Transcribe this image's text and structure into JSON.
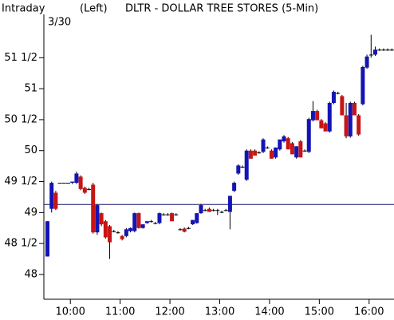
{
  "chart_data": {
    "type": "candlestick",
    "title": "DLTR - DOLLAR TREE STORES (5-Min)",
    "period": "Intraday",
    "axis_side": "(Left)",
    "date": "3/30",
    "up_color": "#1414b4",
    "down_color": "#c81414",
    "reference_line": 49.13,
    "reference_color": "#14146e",
    "xlim": [
      570,
      990
    ],
    "xticks": [
      {
        "value": 600,
        "label": "10:00"
      },
      {
        "value": 660,
        "label": "11:00"
      },
      {
        "value": 720,
        "label": "12:00"
      },
      {
        "value": 780,
        "label": "13:00"
      },
      {
        "value": 840,
        "label": "14:00"
      },
      {
        "value": 900,
        "label": "15:00"
      },
      {
        "value": 960,
        "label": "16:00"
      }
    ],
    "ylim": [
      47.6,
      52.2
    ],
    "yticks": [
      {
        "value": 48,
        "label": "48"
      },
      {
        "value": 48.5,
        "label": "48 1/2"
      },
      {
        "value": 49,
        "label": "49"
      },
      {
        "value": 49.5,
        "label": "49 1/2"
      },
      {
        "value": 50,
        "label": "50"
      },
      {
        "value": 50.5,
        "label": "50 1/2"
      },
      {
        "value": 51,
        "label": "51"
      },
      {
        "value": 51.5,
        "label": "51 1/2"
      }
    ],
    "x": [
      570,
      575,
      580,
      585,
      590,
      595,
      600,
      605,
      610,
      615,
      620,
      625,
      630,
      635,
      640,
      645,
      650,
      655,
      660,
      665,
      670,
      675,
      680,
      685,
      690,
      695,
      700,
      705,
      710,
      715,
      720,
      725,
      730,
      735,
      740,
      745,
      750,
      755,
      760,
      765,
      770,
      775,
      780,
      785,
      790,
      795,
      800,
      805,
      810,
      815,
      820,
      825,
      830,
      835,
      840,
      845,
      850,
      855,
      860,
      865,
      870,
      875,
      880,
      885,
      890,
      895,
      900,
      905,
      910,
      915,
      920,
      925,
      930,
      935,
      940,
      945,
      950,
      955,
      960,
      965,
      970,
      975,
      980,
      985
    ],
    "open": [
      48.29,
      49.06,
      49.32,
      49.48,
      49.48,
      49.48,
      49.48,
      49.48,
      49.58,
      49.4,
      49.38,
      49.45,
      48.68,
      48.99,
      48.86,
      48.78,
      48.7,
      48.68,
      48.62,
      48.62,
      48.7,
      48.7,
      48.99,
      48.75,
      48.83,
      48.86,
      48.83,
      48.83,
      48.97,
      48.97,
      48.99,
      48.97,
      48.73,
      48.74,
      48.75,
      48.81,
      48.83,
      48.99,
      49.04,
      49.06,
      49.04,
      49.04,
      49.01,
      49.04,
      49.01,
      49.35,
      49.63,
      49.74,
      49.53,
      50.0,
      50.0,
      49.97,
      49.98,
      50.05,
      50.0,
      49.89,
      50.02,
      50.15,
      50.2,
      50.12,
      49.89,
      50.15,
      50.0,
      49.98,
      50.49,
      50.64,
      50.49,
      50.44,
      50.31,
      50.77,
      50.93,
      50.88,
      50.57,
      50.23,
      50.77,
      50.57,
      50.75,
      51.34,
      51.55,
      51.55,
      51.63,
      51.63,
      51.63,
      51.63
    ],
    "high": [
      48.86,
      49.5,
      49.35,
      49.48,
      49.48,
      49.48,
      49.5,
      49.66,
      49.6,
      49.42,
      49.4,
      49.48,
      49.14,
      49.0,
      48.88,
      48.8,
      48.72,
      48.7,
      48.64,
      48.75,
      48.76,
      49.0,
      49.0,
      48.81,
      48.86,
      48.88,
      48.85,
      49.0,
      48.99,
      48.99,
      49.0,
      48.99,
      48.75,
      48.76,
      48.77,
      48.88,
      48.99,
      49.14,
      49.06,
      49.08,
      49.06,
      49.06,
      49.03,
      49.06,
      49.27,
      49.5,
      49.78,
      49.76,
      50.02,
      50.02,
      50.02,
      49.99,
      50.2,
      50.07,
      50.02,
      50.05,
      50.18,
      50.25,
      50.22,
      50.14,
      50.07,
      50.17,
      50.02,
      50.53,
      50.8,
      50.66,
      50.51,
      50.46,
      50.79,
      50.97,
      50.95,
      50.9,
      50.77,
      50.79,
      50.79,
      50.59,
      51.37,
      51.55,
      51.87,
      51.68,
      51.65,
      51.65,
      51.65,
      51.65
    ],
    "low": [
      48.29,
      49.0,
      49.04,
      49.48,
      49.48,
      49.48,
      49.46,
      49.46,
      49.36,
      49.3,
      49.36,
      48.66,
      48.64,
      48.78,
      48.58,
      48.25,
      48.68,
      48.66,
      48.55,
      48.6,
      48.68,
      48.68,
      48.74,
      48.74,
      48.82,
      48.84,
      48.81,
      48.81,
      48.95,
      48.95,
      48.86,
      48.95,
      48.71,
      48.68,
      48.73,
      48.8,
      48.82,
      48.98,
      49.02,
      49.01,
      49.02,
      48.96,
      48.99,
      49.02,
      48.73,
      49.33,
      49.61,
      49.72,
      49.51,
      49.87,
      49.92,
      49.95,
      49.96,
      50.03,
      49.87,
      49.87,
      50.0,
      50.13,
      50.02,
      49.94,
      49.87,
      49.89,
      49.98,
      49.96,
      50.47,
      50.49,
      50.36,
      50.31,
      50.29,
      50.75,
      50.91,
      50.57,
      50.2,
      50.21,
      50.57,
      50.24,
      50.73,
      51.32,
      51.5,
      51.53,
      51.61,
      51.61,
      51.61,
      51.61
    ],
    "close": [
      48.86,
      49.48,
      49.06,
      49.48,
      49.48,
      49.48,
      49.5,
      49.63,
      49.38,
      49.32,
      49.38,
      48.68,
      49.12,
      48.81,
      48.6,
      48.52,
      48.7,
      48.68,
      48.57,
      48.73,
      48.75,
      48.99,
      48.75,
      48.81,
      48.86,
      48.86,
      48.83,
      48.99,
      48.97,
      48.97,
      48.86,
      48.97,
      48.73,
      48.69,
      48.75,
      48.88,
      48.99,
      49.12,
      49.04,
      49.01,
      49.04,
      49.04,
      49.01,
      49.04,
      49.27,
      49.48,
      49.76,
      49.74,
      50.0,
      49.87,
      49.92,
      49.97,
      50.18,
      50.05,
      49.87,
      50.05,
      50.18,
      50.23,
      50.02,
      49.94,
      50.07,
      49.89,
      50.0,
      50.51,
      50.64,
      50.49,
      50.36,
      50.31,
      50.77,
      50.95,
      50.93,
      50.57,
      50.23,
      50.77,
      50.57,
      50.26,
      51.35,
      51.52,
      51.55,
      51.63,
      51.63,
      51.63,
      51.63,
      51.63
    ]
  }
}
